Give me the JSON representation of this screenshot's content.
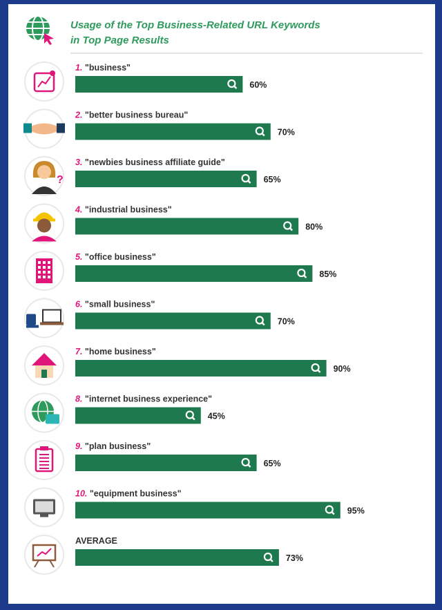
{
  "header": {
    "title_line1": "Usage of the Top Business-Related URL Keywords",
    "title_line2": "in Top Page Results",
    "icon": "globe-cursor-icon"
  },
  "colors": {
    "bar": "#1e7a4e",
    "accent_title": "#2e9b5d",
    "number": "#e0157a",
    "frame": "#1e3a8a"
  },
  "chart_data": {
    "type": "bar",
    "orientation": "horizontal",
    "title": "Usage of the Top Business-Related URL Keywords in Top Page Results",
    "categories": [
      "\"business\"",
      "\"better business bureau\"",
      "\"newbies business affiliate guide\"",
      "\"industrial business\"",
      "\"office business\"",
      "\"small business\"",
      "\"home business\"",
      "\"internet business experience\"",
      "\"plan business\"",
      "\"equipment business\"",
      "AVERAGE"
    ],
    "numbers": [
      "1.",
      "2.",
      "3.",
      "4.",
      "5.",
      "6.",
      "7.",
      "8.",
      "9.",
      "10.",
      ""
    ],
    "values": [
      60,
      70,
      65,
      80,
      85,
      70,
      90,
      45,
      65,
      95,
      73
    ],
    "value_labels": [
      "60%",
      "70%",
      "65%",
      "80%",
      "85%",
      "70%",
      "90%",
      "45%",
      "65%",
      "95%",
      "73%"
    ],
    "icons": [
      "growth-chart-icon",
      "handshake-icon",
      "businesswoman-question-icon",
      "hardhat-worker-icon",
      "office-building-icon",
      "desk-chair-icon",
      "house-icon",
      "globe-briefcase-icon",
      "clipboard-icon",
      "monitor-icon",
      "presentation-board-icon"
    ],
    "xlim": [
      0,
      100
    ],
    "grid": false,
    "legend": "none"
  }
}
